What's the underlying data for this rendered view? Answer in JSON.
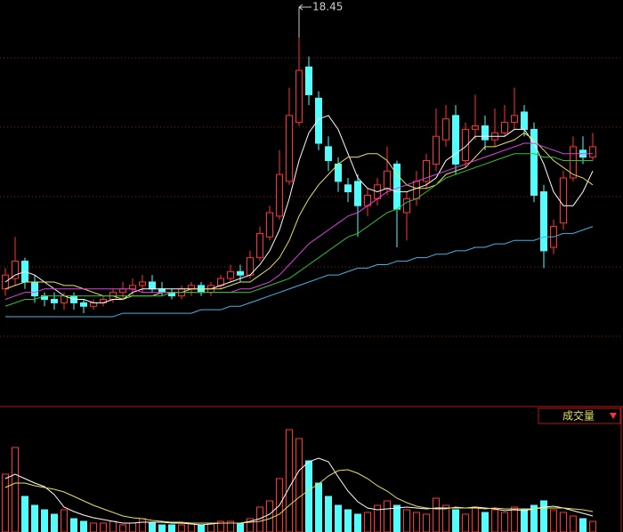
{
  "chart_data": [
    {
      "type": "candlestick",
      "up_color": "#ff3232",
      "down_color": "#54fcfc",
      "ylim": [
        7.86,
        19.53
      ],
      "open": [
        11.2,
        11.5,
        12.0,
        11.4,
        11.0,
        10.9,
        10.8,
        11.0,
        10.8,
        10.7,
        10.8,
        10.9,
        11.1,
        11.2,
        11.3,
        11.4,
        11.2,
        11.1,
        11.0,
        11.2,
        11.3,
        11.1,
        11.3,
        11.5,
        11.7,
        11.6,
        12.1,
        12.7,
        13.3,
        14.3,
        16.0,
        17.6,
        16.7,
        15.3,
        14.8,
        14.2,
        14.3,
        13.6,
        13.8,
        14.1,
        14.8,
        13.4,
        13.8,
        14.3,
        14.8,
        15.5,
        16.2,
        14.9,
        15.8,
        15.9,
        15.5,
        15.7,
        16.0,
        16.3,
        15.8,
        14.0,
        12.4,
        13.1,
        14.4,
        15.2,
        15.0
      ],
      "high": [
        11.8,
        12.7,
        12.1,
        11.6,
        11.1,
        11.1,
        11.1,
        11.1,
        10.9,
        10.9,
        11.0,
        11.2,
        11.4,
        11.5,
        11.6,
        11.6,
        11.4,
        11.2,
        11.3,
        11.4,
        11.4,
        11.4,
        11.6,
        11.9,
        11.9,
        12.3,
        13.0,
        13.6,
        15.2,
        17.0,
        18.45,
        17.9,
        16.9,
        15.6,
        15.0,
        14.4,
        14.5,
        14.1,
        14.4,
        15.3,
        14.9,
        14.0,
        14.6,
        15.1,
        16.4,
        16.5,
        16.5,
        16.0,
        16.8,
        16.2,
        16.4,
        16.5,
        17.0,
        16.5,
        16.0,
        14.2,
        13.2,
        14.6,
        15.6,
        15.6,
        15.7
      ],
      "low": [
        11.0,
        11.3,
        11.2,
        10.8,
        10.7,
        10.6,
        10.6,
        10.6,
        10.5,
        10.6,
        10.7,
        10.8,
        10.9,
        11.0,
        11.1,
        11.1,
        11.0,
        10.9,
        10.9,
        11.0,
        11.0,
        11.0,
        11.2,
        11.4,
        11.4,
        11.5,
        12.0,
        12.6,
        13.2,
        14.2,
        15.9,
        16.5,
        15.2,
        14.6,
        14.0,
        13.7,
        12.7,
        13.3,
        13.6,
        13.9,
        12.4,
        12.6,
        13.6,
        14.1,
        14.6,
        15.3,
        14.5,
        14.7,
        15.5,
        15.2,
        15.3,
        15.6,
        15.8,
        15.6,
        13.7,
        11.8,
        12.2,
        12.9,
        14.3,
        14.8,
        14.9
      ],
      "close": [
        11.6,
        12.0,
        11.4,
        11.0,
        10.9,
        10.8,
        11.0,
        10.8,
        10.7,
        10.8,
        10.9,
        11.1,
        11.2,
        11.3,
        11.4,
        11.2,
        11.1,
        11.0,
        11.2,
        11.3,
        11.1,
        11.3,
        11.5,
        11.7,
        11.6,
        12.1,
        12.8,
        13.4,
        14.5,
        16.2,
        17.5,
        16.8,
        15.4,
        14.9,
        14.3,
        14.0,
        13.6,
        13.9,
        14.2,
        14.6,
        13.5,
        13.8,
        14.3,
        14.9,
        15.6,
        16.1,
        14.8,
        15.8,
        15.9,
        15.5,
        15.7,
        16.0,
        16.2,
        15.8,
        13.9,
        12.3,
        13.0,
        14.4,
        15.3,
        15.0,
        15.3
      ],
      "series": [
        {
          "color": "#ffffff",
          "values": [
            11.4,
            11.6,
            11.7,
            11.6,
            11.4,
            11.2,
            11.0,
            10.9,
            10.9,
            10.8,
            10.8,
            10.9,
            10.9,
            11.1,
            11.2,
            11.2,
            11.2,
            11.2,
            11.2,
            11.2,
            11.2,
            11.2,
            11.3,
            11.4,
            11.5,
            11.6,
            11.9,
            12.3,
            12.9,
            13.8,
            14.9,
            15.7,
            16.1,
            16.2,
            15.8,
            15.1,
            14.4,
            14.1,
            14.0,
            14.1,
            14.0,
            14.0,
            14.1,
            14.2,
            14.4,
            14.9,
            15.1,
            15.3,
            15.6,
            15.6,
            15.6,
            15.6,
            15.8,
            15.8,
            15.4,
            14.8,
            14.0,
            13.6,
            13.6,
            14.0,
            14.6
          ]
        },
        {
          "color": "#e8e05a",
          "values": [
            11.2,
            11.3,
            11.4,
            11.4,
            11.4,
            11.4,
            11.3,
            11.3,
            11.2,
            11.1,
            11.0,
            11.0,
            10.9,
            11.0,
            11.0,
            11.0,
            11.1,
            11.1,
            11.1,
            11.2,
            11.2,
            11.2,
            11.2,
            11.3,
            11.4,
            11.4,
            11.6,
            11.8,
            12.1,
            12.6,
            13.3,
            13.8,
            14.2,
            14.5,
            14.8,
            15.0,
            15.0,
            15.1,
            15.1,
            14.9,
            14.5,
            14.2,
            14.1,
            14.1,
            14.2,
            14.5,
            14.6,
            14.7,
            15.0,
            15.3,
            15.3,
            15.4,
            15.5,
            15.7,
            15.5,
            15.2,
            14.9,
            14.7,
            14.5,
            14.4,
            14.2
          ]
        },
        {
          "color": "#e040e0",
          "values": [
            10.9,
            11.0,
            11.1,
            11.1,
            11.2,
            11.2,
            11.2,
            11.2,
            11.2,
            11.2,
            11.2,
            11.2,
            11.2,
            11.2,
            11.1,
            11.1,
            11.1,
            11.1,
            11.1,
            11.1,
            11.1,
            11.1,
            11.1,
            11.1,
            11.2,
            11.2,
            11.3,
            11.4,
            11.6,
            11.9,
            12.2,
            12.5,
            12.7,
            12.9,
            13.1,
            13.3,
            13.4,
            13.6,
            13.8,
            14.0,
            14.1,
            14.2,
            14.3,
            14.4,
            14.5,
            14.6,
            14.7,
            14.8,
            14.9,
            15.0,
            15.1,
            15.2,
            15.3,
            15.4,
            15.4,
            15.3,
            15.2,
            15.1,
            15.1,
            15.1,
            15.1
          ]
        },
        {
          "color": "#30c030",
          "values": [
            10.7,
            10.8,
            10.9,
            10.9,
            11.0,
            11.0,
            11.0,
            11.0,
            11.0,
            11.0,
            11.0,
            11.0,
            11.0,
            11.0,
            11.0,
            11.0,
            11.0,
            11.1,
            11.1,
            11.1,
            11.1,
            11.1,
            11.1,
            11.1,
            11.1,
            11.1,
            11.2,
            11.3,
            11.4,
            11.5,
            11.7,
            11.9,
            12.1,
            12.3,
            12.5,
            12.7,
            12.8,
            13.0,
            13.2,
            13.4,
            13.5,
            13.7,
            13.8,
            14.0,
            14.2,
            14.4,
            14.5,
            14.6,
            14.7,
            14.8,
            14.9,
            15.0,
            15.1,
            15.1,
            15.1,
            15.0,
            15.0,
            14.9,
            14.9,
            14.9,
            14.9
          ]
        },
        {
          "color": "#3fb4e8",
          "values": [
            10.4,
            10.4,
            10.4,
            10.4,
            10.4,
            10.4,
            10.4,
            10.4,
            10.4,
            10.4,
            10.4,
            10.4,
            10.5,
            10.5,
            10.5,
            10.5,
            10.5,
            10.5,
            10.5,
            10.5,
            10.6,
            10.6,
            10.6,
            10.7,
            10.7,
            10.8,
            10.9,
            11.0,
            11.1,
            11.2,
            11.3,
            11.4,
            11.5,
            11.6,
            11.6,
            11.7,
            11.8,
            11.8,
            11.9,
            11.9,
            12.0,
            12.0,
            12.1,
            12.1,
            12.2,
            12.2,
            12.3,
            12.3,
            12.4,
            12.4,
            12.5,
            12.5,
            12.6,
            12.6,
            12.6,
            12.7,
            12.7,
            12.8,
            12.8,
            12.9,
            13.0
          ]
        }
      ]
    },
    {
      "type": "bar",
      "title": "成交量",
      "ylim": [
        0,
        140
      ],
      "values": [
        65,
        95,
        40,
        30,
        25,
        20,
        25,
        15,
        12,
        10,
        10,
        12,
        8,
        10,
        15,
        10,
        8,
        8,
        8,
        10,
        8,
        10,
        12,
        12,
        10,
        15,
        28,
        35,
        60,
        115,
        105,
        80,
        55,
        40,
        30,
        25,
        20,
        22,
        30,
        35,
        30,
        25,
        22,
        20,
        38,
        30,
        25,
        20,
        28,
        22,
        25,
        22,
        28,
        25,
        30,
        35,
        25,
        22,
        18,
        15,
        12
      ],
      "series": [
        {
          "color": "#ffffff",
          "values": [
            60,
            65,
            60,
            55,
            51,
            42,
            28,
            23,
            19,
            16,
            14,
            12,
            10,
            10,
            11,
            11,
            11,
            10,
            10,
            9,
            8,
            9,
            10,
            10,
            10,
            12,
            15,
            20,
            30,
            50,
            69,
            79,
            83,
            79,
            62,
            46,
            34,
            27,
            25,
            26,
            27,
            28,
            27,
            26,
            27,
            27,
            27,
            27,
            28,
            27,
            26,
            24,
            25,
            24,
            26,
            28,
            29,
            27,
            24,
            21,
            18
          ]
        },
        {
          "color": "#e8e05a",
          "values": [
            50,
            55,
            55,
            52,
            50,
            48,
            45,
            40,
            35,
            30,
            26,
            22,
            18,
            16,
            15,
            13,
            12,
            11,
            11,
            10,
            10,
            10,
            10,
            10,
            10,
            11,
            12,
            15,
            20,
            30,
            39,
            47,
            54,
            63,
            69,
            70,
            66,
            60,
            52,
            46,
            38,
            33,
            29,
            27,
            26,
            26,
            28,
            27,
            27,
            26,
            27,
            26,
            26,
            26,
            26,
            27,
            27,
            27,
            26,
            25,
            23
          ]
        }
      ]
    }
  ]
}
